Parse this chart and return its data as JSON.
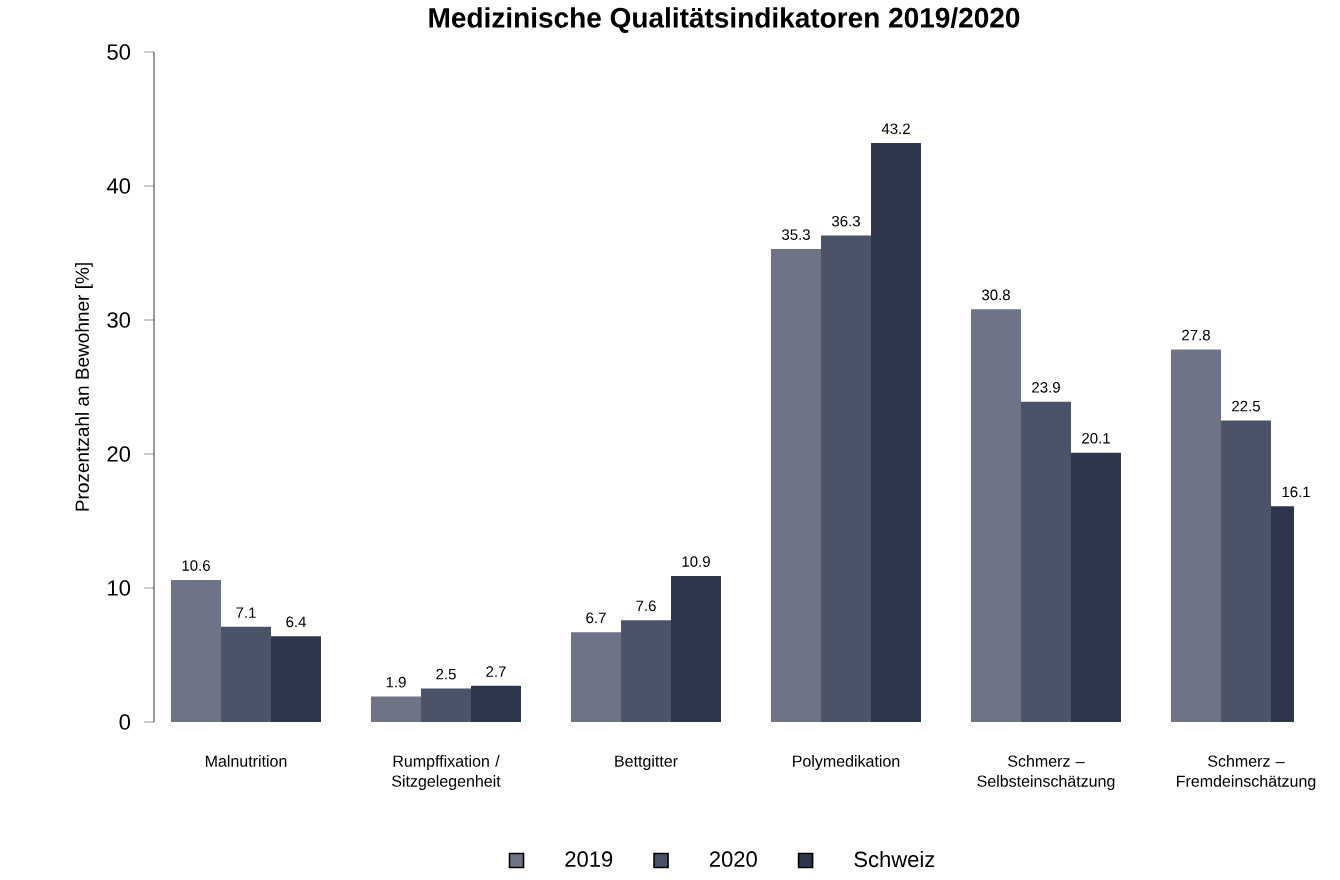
{
  "chart_data": {
    "type": "bar",
    "title": "Medizinische Qualitätsindikatoren 2019/2020",
    "ylabel": "Prozentzahl an Bewohner [%]",
    "categories": [
      "Malnutrition",
      "Rumpffixation / Sitzgelegenheit",
      "Bettgitter",
      "Polymedikation",
      "Schmerz – Selbsteinschätzung",
      "Schmerz – Fremdeinschätzung"
    ],
    "series": [
      {
        "name": "2019",
        "color": "#6e7385",
        "values": [
          10.6,
          1.9,
          6.7,
          35.3,
          30.8,
          27.8
        ]
      },
      {
        "name": "2020",
        "color": "#4b5368",
        "values": [
          7.1,
          2.5,
          7.6,
          36.3,
          23.9,
          22.5
        ]
      },
      {
        "name": "Schweiz",
        "color": "#2e364c",
        "values": [
          6.4,
          2.7,
          10.9,
          43.2,
          20.1,
          16.1
        ]
      }
    ],
    "ylim": [
      0,
      50
    ],
    "yticks": [
      0,
      10,
      20,
      30,
      40,
      50
    ],
    "data_labels": true,
    "legend": "bottom",
    "grid": false
  }
}
